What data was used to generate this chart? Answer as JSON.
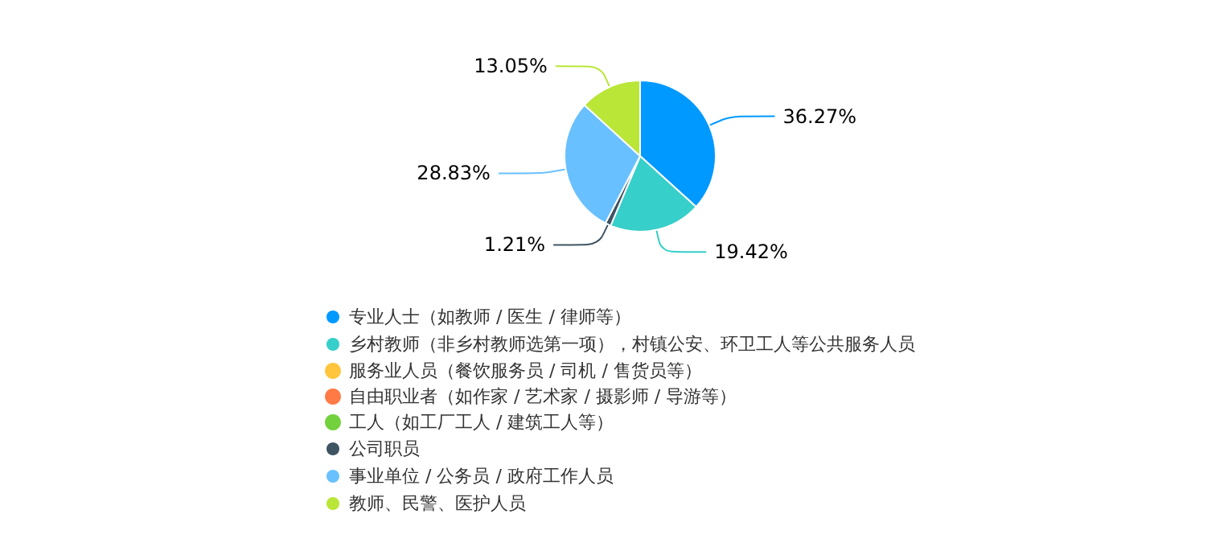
{
  "chart_data": {
    "type": "pie",
    "categories": [
      "专业人士（如教师 / 医生 / 律师等）",
      "乡村教师（非乡村教师选第一项），村镇公安、环卫工人等公共服务人员",
      "服务业人员（餐饮服务员 / 司机 / 售货员等）",
      "自由职业者（如作家 / 艺术家 / 摄影师 / 导游等）",
      "工人（如工厂工人 / 建筑工人等）",
      "公司职员",
      "事业单位 / 公务员 / 政府工作人员",
      "教师、民警、医护人员"
    ],
    "values": [
      36.27,
      19.42,
      0,
      0,
      0,
      1.21,
      28.83,
      13.05
    ],
    "colors": [
      "#0099ff",
      "#36cfc9",
      "#ffc53d",
      "#ff7a45",
      "#73d13d",
      "#3f5463",
      "#69c0ff",
      "#bae637"
    ],
    "value_labels": [
      "36.27%",
      "19.42%",
      null,
      null,
      null,
      "1.21%",
      "28.83%",
      "13.05%"
    ],
    "legend": "bottom"
  }
}
